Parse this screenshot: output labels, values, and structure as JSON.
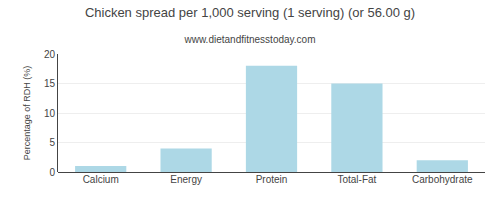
{
  "chart_data": {
    "type": "bar",
    "title": "Chicken spread per 1,000 serving (1 serving) (or 56.00 g)",
    "subtitle": "www.dietandfitnesstoday.com",
    "categories": [
      "Calcium",
      "Energy",
      "Protein",
      "Total-Fat",
      "Carbohydrate"
    ],
    "values": [
      1.0,
      4.0,
      18.0,
      15.0,
      2.0
    ],
    "color": "#add8e6",
    "ylabel": "Percentage of RDH (%)",
    "ylim": [
      0,
      20
    ],
    "yticks": [
      0,
      5,
      10,
      15,
      20
    ],
    "grid": true
  }
}
